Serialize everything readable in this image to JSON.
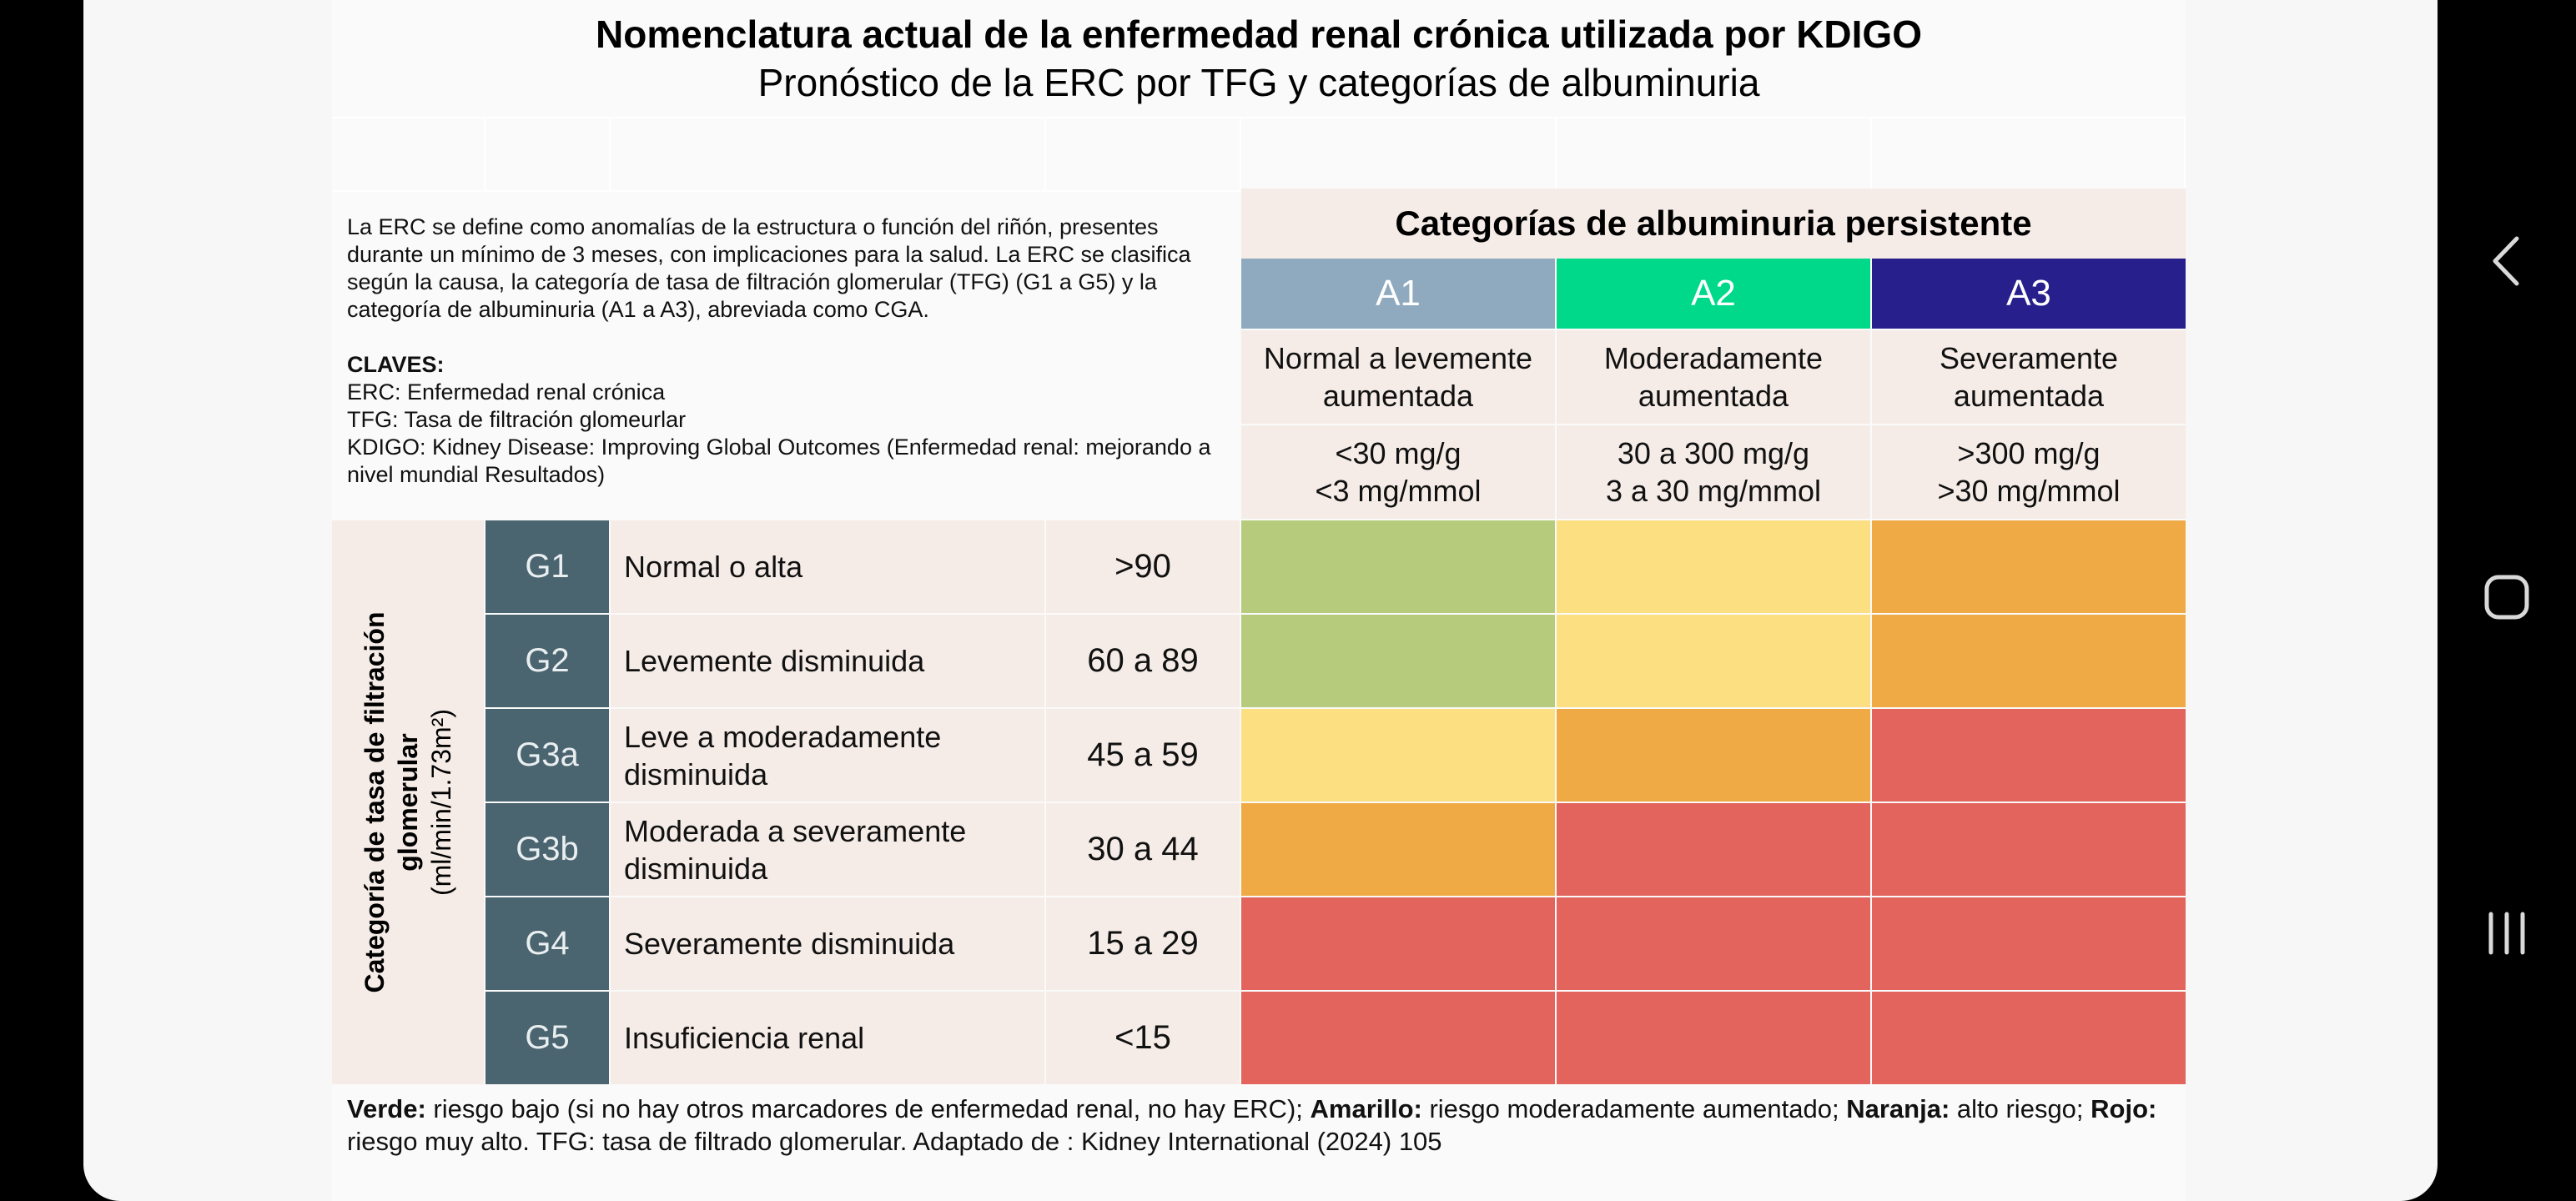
{
  "title": "Nomenclatura actual de la enfermedad renal crónica utilizada por KDIGO",
  "subtitle": "Pronóstico de la ERC por TFG y categorías de albuminuria",
  "intro": {
    "definition": "La ERC se define como anomalías de la estructura o función del riñón, presentes durante un mínimo de 3 meses, con implicaciones para la salud. La ERC se clasifica según la causa, la categoría de tasa de filtración glomerular (TFG) (G1 a G5) y la categoría de albuminuria (A1 a A3), abreviada como CGA.",
    "keys_title": "CLAVES:",
    "keys": [
      "ERC: Enfermedad renal crónica",
      "TFG: Tasa de filtración glomeurlar",
      "KDIGO: Kidney Disease: Improving Global Outcomes (Enfermedad renal: mejorando a nivel mundial Resultados)"
    ]
  },
  "albuminuria": {
    "header": "Categorías de albuminuria persistente",
    "categories": [
      {
        "code": "A1",
        "line1": "Normal a levemente",
        "line2": "aumentada",
        "range1": "<30 mg/g",
        "range2": "<3 mg/mmol",
        "color": "#8faabf"
      },
      {
        "code": "A2",
        "line1": "Moderadamente",
        "line2": "aumentada",
        "range1": "30 a 300 mg/g",
        "range2": "3 a 30 mg/mmol",
        "color": "#00d98a"
      },
      {
        "code": "A3",
        "line1": "Severamente",
        "line2": "aumentada",
        "range1": ">300 mg/g",
        "range2": ">30 mg/mmol",
        "color": "#271f8c"
      }
    ]
  },
  "gfr": {
    "axis_label_bold": "Categoría de tasa de filtración glomerular",
    "axis_label_unit": "(ml/min/1.73m²)",
    "rows": [
      {
        "code": "G1",
        "desc": "Normal o alta",
        "range": ">90",
        "risk": [
          "green",
          "yellow",
          "orange"
        ]
      },
      {
        "code": "G2",
        "desc": "Levemente disminuida",
        "range": "60 a 89",
        "risk": [
          "green",
          "yellow",
          "orange"
        ]
      },
      {
        "code": "G3a",
        "desc": "Leve a moderadamente disminuida",
        "range": "45 a 59",
        "risk": [
          "yellow",
          "orange",
          "red"
        ]
      },
      {
        "code": "G3b",
        "desc": "Moderada a severamente disminuida",
        "range": "30 a 44",
        "risk": [
          "orange",
          "red",
          "red"
        ]
      },
      {
        "code": "G4",
        "desc": "Severamente disminuida",
        "range": "15 a 29",
        "risk": [
          "red",
          "red",
          "red"
        ]
      },
      {
        "code": "G5",
        "desc": "Insuficiencia renal",
        "range": "<15",
        "risk": [
          "red",
          "red",
          "red"
        ]
      }
    ]
  },
  "risk_colors": {
    "green": "#b6cc7c",
    "yellow": "#fcdf80",
    "orange": "#f0aa45",
    "red": "#e2645d"
  },
  "footer": {
    "green_label": "Verde:",
    "green_text": " riesgo bajo (si no hay otros marcadores de enfermedad renal, no hay ERC); ",
    "yellow_label": "Amarillo:",
    "yellow_text": " riesgo moderadamente aumentado; ",
    "orange_label": "Naranja:",
    "orange_text": " alto riesgo; ",
    "red_label": "Rojo:",
    "red_text": " riesgo muy alto. TFG: tasa de filtrado glomerular. Adaptado de : Kidney International (2024) 105"
  },
  "nav": {
    "back_icon": "back-icon",
    "home_icon": "home-icon",
    "recents_icon": "recents-icon"
  }
}
